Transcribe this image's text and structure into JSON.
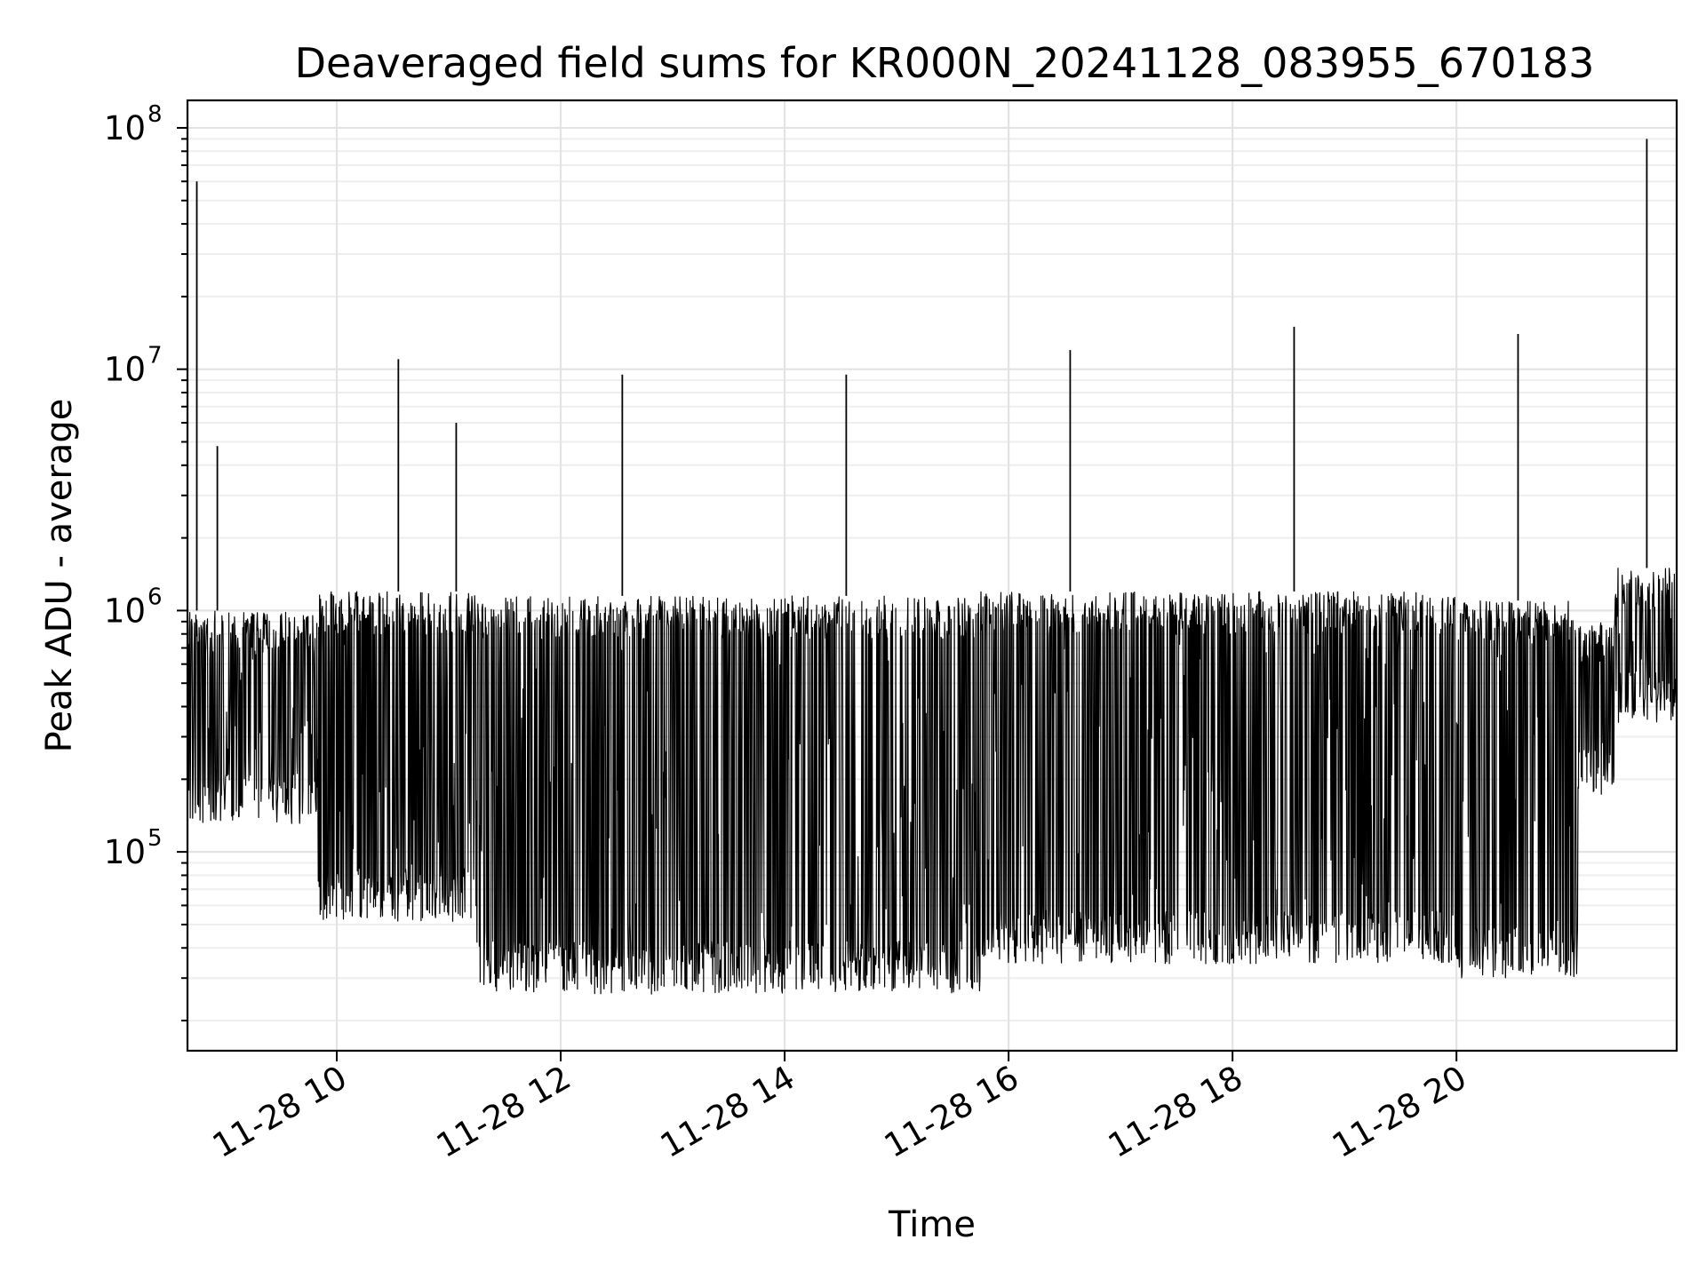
{
  "chart_data": {
    "type": "line",
    "title": "Deaveraged field sums for KR000N_20241128_083955_670183",
    "xlabel": "Time",
    "ylabel": "Peak ADU - average",
    "yscale": "log",
    "ylim": [
      15000,
      130000000
    ],
    "xlim": [
      "2024-11-28 08:40",
      "2024-11-28 21:58"
    ],
    "x_ticks": [
      "11-28 10",
      "11-28 12",
      "11-28 14",
      "11-28 16",
      "11-28 18",
      "11-28 20"
    ],
    "x_tick_values": [
      "2024-11-28 10:00",
      "2024-11-28 12:00",
      "2024-11-28 14:00",
      "2024-11-28 16:00",
      "2024-11-28 18:00",
      "2024-11-28 20:00"
    ],
    "y_ticks": [
      {
        "base": "10",
        "exp": "5",
        "value": 100000
      },
      {
        "base": "10",
        "exp": "6",
        "value": 1000000
      },
      {
        "base": "10",
        "exp": "7",
        "value": 10000000
      },
      {
        "base": "10",
        "exp": "8",
        "value": 100000000
      }
    ],
    "grid": true,
    "line_color": "#000000",
    "segments": [
      {
        "start": "2024-11-28 08:40",
        "end": "2024-11-28 09:50",
        "low": 150000,
        "high": 1000000
      },
      {
        "start": "2024-11-28 09:50",
        "end": "2024-11-28 11:15",
        "low": 60000,
        "high": 1200000
      },
      {
        "start": "2024-11-28 11:15",
        "end": "2024-11-28 15:45",
        "low": 30000,
        "high": 1150000
      },
      {
        "start": "2024-11-28 15:45",
        "end": "2024-11-28 20:00",
        "low": 40000,
        "high": 1200000
      },
      {
        "start": "2024-11-28 20:00",
        "end": "2024-11-28 21:05",
        "low": 35000,
        "high": 1100000
      },
      {
        "start": "2024-11-28 21:05",
        "end": "2024-11-28 21:25",
        "low": 200000,
        "high": 900000
      },
      {
        "start": "2024-11-28 21:25",
        "end": "2024-11-28 21:58",
        "low": 400000,
        "high": 1500000
      }
    ],
    "spikes": [
      {
        "x": "2024-11-28 08:45",
        "y": 60000000
      },
      {
        "x": "2024-11-28 08:56",
        "y": 4800000
      },
      {
        "x": "2024-11-28 10:33",
        "y": 11000000
      },
      {
        "x": "2024-11-28 11:04",
        "y": 6000000
      },
      {
        "x": "2024-11-28 12:33",
        "y": 9500000
      },
      {
        "x": "2024-11-28 14:33",
        "y": 9500000
      },
      {
        "x": "2024-11-28 16:33",
        "y": 12000000
      },
      {
        "x": "2024-11-28 18:33",
        "y": 15000000
      },
      {
        "x": "2024-11-28 20:33",
        "y": 14000000
      },
      {
        "x": "2024-11-28 21:42",
        "y": 90000000
      }
    ]
  }
}
